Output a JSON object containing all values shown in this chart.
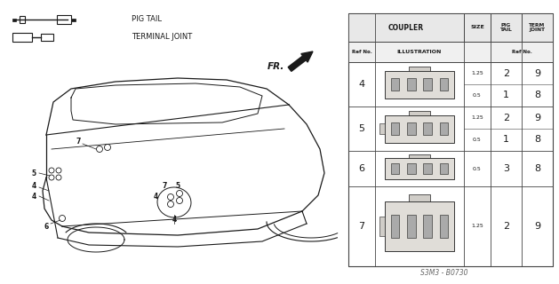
{
  "bg_color": "#ffffff",
  "title_code": "S3M3 - B0730",
  "pig_tail_label": "PIG TAIL",
  "terminal_joint_label": "TERMINAL JOINT",
  "fr_label": "FR.",
  "table": {
    "rows": [
      {
        "ref": "4",
        "size": [
          "1.25",
          "0.5"
        ],
        "pig_tail": [
          "2",
          "1"
        ],
        "term_joint": [
          "9",
          "8"
        ]
      },
      {
        "ref": "5",
        "size": [
          "1.25",
          "0.5"
        ],
        "pig_tail": [
          "2",
          "1"
        ],
        "term_joint": [
          "9",
          "8"
        ]
      },
      {
        "ref": "6",
        "size": [
          "0.5"
        ],
        "pig_tail": [
          "3"
        ],
        "term_joint": [
          "8"
        ]
      },
      {
        "ref": "7",
        "size": [
          "1.25"
        ],
        "pig_tail": [
          "2"
        ],
        "term_joint": [
          "9"
        ]
      }
    ]
  }
}
